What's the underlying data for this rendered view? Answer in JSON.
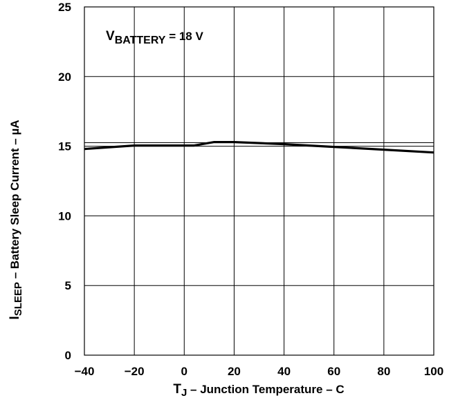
{
  "chart_data": {
    "type": "line",
    "xlabel": {
      "main": "T",
      "sub": "J",
      "rest": " – Junction Temperature –   C"
    },
    "ylabel": {
      "main": "I",
      "sub": "SLEEP",
      "rest": " – Battery Sleep Current – µA"
    },
    "annotation": {
      "main": "V",
      "sub": "BATTERY",
      "rest": " = 18 V"
    },
    "xlim": [
      -40,
      100
    ],
    "ylim": [
      0,
      25
    ],
    "xticks": [
      "-40",
      "-20",
      "0",
      "20",
      "40",
      "60",
      "80",
      "100"
    ],
    "yticks": [
      "0",
      "5",
      "10",
      "15",
      "20",
      "25"
    ],
    "grid": true,
    "series": [
      {
        "x": [
          -40,
          -20,
          0,
          4,
          12,
          20,
          40,
          60,
          80,
          100
        ],
        "y": [
          14.8,
          15.05,
          15.05,
          15.05,
          15.3,
          15.3,
          15.15,
          14.95,
          14.75,
          14.55
        ],
        "color": "#000000"
      }
    ]
  }
}
